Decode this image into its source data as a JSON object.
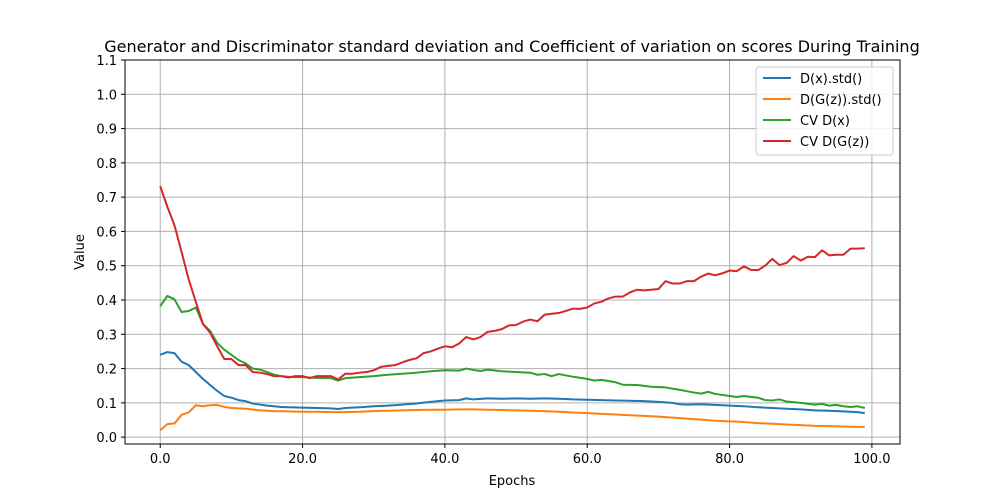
{
  "chart_data": {
    "type": "line",
    "title": "Generator and Discriminator standard deviation and Coefficient of variation on scores During Training",
    "xlabel": "Epochs",
    "ylabel": "Value",
    "xlim": [
      -4.95,
      103.95
    ],
    "ylim": [
      -0.02,
      1.1
    ],
    "xticks": [
      0,
      20,
      40,
      60,
      80,
      100
    ],
    "xtick_labels": [
      "0.0",
      "20.0",
      "40.0",
      "60.0",
      "80.0",
      "100.0"
    ],
    "yticks": [
      0.0,
      0.1,
      0.2,
      0.3,
      0.4,
      0.5,
      0.6,
      0.7,
      0.8,
      0.9,
      1.0,
      1.1
    ],
    "ytick_labels": [
      "0.0",
      "0.1",
      "0.2",
      "0.3",
      "0.4",
      "0.5",
      "0.6",
      "0.7",
      "0.8",
      "0.9",
      "1.0",
      "1.1"
    ],
    "grid": true,
    "legend_position": "top-right",
    "series": [
      {
        "name": "D(x).std()",
        "color": "#1f77b4",
        "points": [
          [
            0,
            0.24
          ],
          [
            1,
            0.248
          ],
          [
            2,
            0.245
          ],
          [
            3,
            0.22
          ],
          [
            4,
            0.21
          ],
          [
            5,
            0.19
          ],
          [
            6,
            0.17
          ],
          [
            7,
            0.152
          ],
          [
            8,
            0.135
          ],
          [
            9,
            0.12
          ],
          [
            10,
            0.115
          ],
          [
            11,
            0.108
          ],
          [
            12,
            0.105
          ],
          [
            13,
            0.098
          ],
          [
            14,
            0.095
          ],
          [
            15,
            0.092
          ],
          [
            16,
            0.09
          ],
          [
            17,
            0.088
          ],
          [
            18,
            0.087
          ],
          [
            20,
            0.086
          ],
          [
            22,
            0.085
          ],
          [
            24,
            0.084
          ],
          [
            25,
            0.082
          ],
          [
            26,
            0.085
          ],
          [
            28,
            0.087
          ],
          [
            30,
            0.09
          ],
          [
            32,
            0.092
          ],
          [
            34,
            0.095
          ],
          [
            36,
            0.098
          ],
          [
            38,
            0.103
          ],
          [
            40,
            0.107
          ],
          [
            42,
            0.108
          ],
          [
            43,
            0.113
          ],
          [
            44,
            0.11
          ],
          [
            46,
            0.113
          ],
          [
            48,
            0.112
          ],
          [
            50,
            0.113
          ],
          [
            52,
            0.112
          ],
          [
            54,
            0.113
          ],
          [
            56,
            0.112
          ],
          [
            58,
            0.11
          ],
          [
            60,
            0.109
          ],
          [
            62,
            0.108
          ],
          [
            64,
            0.107
          ],
          [
            66,
            0.106
          ],
          [
            68,
            0.105
          ],
          [
            70,
            0.103
          ],
          [
            72,
            0.1
          ],
          [
            73,
            0.096
          ],
          [
            74,
            0.095
          ],
          [
            76,
            0.096
          ],
          [
            78,
            0.094
          ],
          [
            80,
            0.092
          ],
          [
            82,
            0.09
          ],
          [
            84,
            0.087
          ],
          [
            86,
            0.085
          ],
          [
            88,
            0.083
          ],
          [
            90,
            0.081
          ],
          [
            92,
            0.078
          ],
          [
            94,
            0.077
          ],
          [
            96,
            0.075
          ],
          [
            98,
            0.073
          ],
          [
            99,
            0.07
          ]
        ]
      },
      {
        "name": "D(G(z)).std()",
        "color": "#ff7f0e",
        "points": [
          [
            0,
            0.02
          ],
          [
            1,
            0.038
          ],
          [
            2,
            0.04
          ],
          [
            3,
            0.065
          ],
          [
            4,
            0.072
          ],
          [
            5,
            0.093
          ],
          [
            6,
            0.09
          ],
          [
            7,
            0.093
          ],
          [
            8,
            0.094
          ],
          [
            9,
            0.088
          ],
          [
            10,
            0.085
          ],
          [
            12,
            0.083
          ],
          [
            14,
            0.078
          ],
          [
            16,
            0.076
          ],
          [
            18,
            0.075
          ],
          [
            20,
            0.074
          ],
          [
            22,
            0.074
          ],
          [
            24,
            0.073
          ],
          [
            26,
            0.073
          ],
          [
            28,
            0.074
          ],
          [
            30,
            0.076
          ],
          [
            32,
            0.077
          ],
          [
            34,
            0.078
          ],
          [
            36,
            0.079
          ],
          [
            38,
            0.08
          ],
          [
            40,
            0.08
          ],
          [
            42,
            0.081
          ],
          [
            44,
            0.081
          ],
          [
            46,
            0.08
          ],
          [
            48,
            0.079
          ],
          [
            50,
            0.078
          ],
          [
            52,
            0.077
          ],
          [
            54,
            0.076
          ],
          [
            56,
            0.074
          ],
          [
            58,
            0.072
          ],
          [
            60,
            0.07
          ],
          [
            62,
            0.068
          ],
          [
            64,
            0.066
          ],
          [
            66,
            0.064
          ],
          [
            68,
            0.062
          ],
          [
            70,
            0.06
          ],
          [
            72,
            0.057
          ],
          [
            74,
            0.054
          ],
          [
            76,
            0.051
          ],
          [
            78,
            0.048
          ],
          [
            80,
            0.046
          ],
          [
            82,
            0.044
          ],
          [
            84,
            0.041
          ],
          [
            86,
            0.039
          ],
          [
            88,
            0.037
          ],
          [
            90,
            0.035
          ],
          [
            92,
            0.033
          ],
          [
            94,
            0.032
          ],
          [
            96,
            0.031
          ],
          [
            98,
            0.03
          ],
          [
            99,
            0.03
          ]
        ]
      },
      {
        "name": "CV D(x)",
        "color": "#2ca02c",
        "points": [
          [
            0,
            0.382
          ],
          [
            1,
            0.412
          ],
          [
            2,
            0.402
          ],
          [
            3,
            0.365
          ],
          [
            4,
            0.368
          ],
          [
            5,
            0.378
          ],
          [
            6,
            0.33
          ],
          [
            7,
            0.31
          ],
          [
            8,
            0.275
          ],
          [
            9,
            0.255
          ],
          [
            10,
            0.24
          ],
          [
            11,
            0.225
          ],
          [
            12,
            0.215
          ],
          [
            13,
            0.2
          ],
          [
            14,
            0.197
          ],
          [
            15,
            0.19
          ],
          [
            16,
            0.182
          ],
          [
            17,
            0.178
          ],
          [
            18,
            0.176
          ],
          [
            19,
            0.175
          ],
          [
            20,
            0.175
          ],
          [
            22,
            0.173
          ],
          [
            24,
            0.172
          ],
          [
            25,
            0.165
          ],
          [
            26,
            0.172
          ],
          [
            28,
            0.175
          ],
          [
            30,
            0.178
          ],
          [
            32,
            0.182
          ],
          [
            34,
            0.185
          ],
          [
            36,
            0.188
          ],
          [
            38,
            0.192
          ],
          [
            40,
            0.195
          ],
          [
            42,
            0.194
          ],
          [
            43,
            0.2
          ],
          [
            44,
            0.196
          ],
          [
            45,
            0.193
          ],
          [
            46,
            0.197
          ],
          [
            48,
            0.192
          ],
          [
            50,
            0.19
          ],
          [
            52,
            0.188
          ],
          [
            53,
            0.182
          ],
          [
            54,
            0.184
          ],
          [
            55,
            0.178
          ],
          [
            56,
            0.184
          ],
          [
            58,
            0.176
          ],
          [
            60,
            0.17
          ],
          [
            61,
            0.165
          ],
          [
            62,
            0.167
          ],
          [
            64,
            0.16
          ],
          [
            65,
            0.153
          ],
          [
            67,
            0.152
          ],
          [
            69,
            0.147
          ],
          [
            71,
            0.145
          ],
          [
            73,
            0.138
          ],
          [
            75,
            0.13
          ],
          [
            76,
            0.127
          ],
          [
            77,
            0.132
          ],
          [
            78,
            0.126
          ],
          [
            80,
            0.12
          ],
          [
            81,
            0.117
          ],
          [
            82,
            0.12
          ],
          [
            84,
            0.115
          ],
          [
            85,
            0.108
          ],
          [
            86,
            0.107
          ],
          [
            87,
            0.11
          ],
          [
            88,
            0.104
          ],
          [
            90,
            0.1
          ],
          [
            92,
            0.095
          ],
          [
            93,
            0.097
          ],
          [
            94,
            0.092
          ],
          [
            95,
            0.094
          ],
          [
            96,
            0.09
          ],
          [
            97,
            0.088
          ],
          [
            98,
            0.09
          ],
          [
            99,
            0.085
          ]
        ]
      },
      {
        "name": "CV D(G(z))",
        "color": "#d62728",
        "points": [
          [
            0,
            0.732
          ],
          [
            1,
            0.672
          ],
          [
            2,
            0.618
          ],
          [
            3,
            0.54
          ],
          [
            4,
            0.46
          ],
          [
            5,
            0.395
          ],
          [
            6,
            0.33
          ],
          [
            7,
            0.305
          ],
          [
            8,
            0.265
          ],
          [
            9,
            0.228
          ],
          [
            10,
            0.228
          ],
          [
            11,
            0.21
          ],
          [
            12,
            0.21
          ],
          [
            13,
            0.19
          ],
          [
            14,
            0.188
          ],
          [
            15,
            0.184
          ],
          [
            16,
            0.178
          ],
          [
            17,
            0.178
          ],
          [
            18,
            0.174
          ],
          [
            19,
            0.178
          ],
          [
            20,
            0.178
          ],
          [
            21,
            0.172
          ],
          [
            22,
            0.178
          ],
          [
            23,
            0.178
          ],
          [
            24,
            0.178
          ],
          [
            25,
            0.168
          ],
          [
            26,
            0.185
          ],
          [
            27,
            0.185
          ],
          [
            28,
            0.188
          ],
          [
            29,
            0.19
          ],
          [
            30,
            0.195
          ],
          [
            31,
            0.205
          ],
          [
            32,
            0.208
          ],
          [
            33,
            0.21
          ],
          [
            34,
            0.218
          ],
          [
            35,
            0.225
          ],
          [
            36,
            0.23
          ],
          [
            37,
            0.245
          ],
          [
            38,
            0.25
          ],
          [
            39,
            0.258
          ],
          [
            40,
            0.265
          ],
          [
            41,
            0.262
          ],
          [
            42,
            0.273
          ],
          [
            43,
            0.292
          ],
          [
            44,
            0.285
          ],
          [
            45,
            0.292
          ],
          [
            46,
            0.307
          ],
          [
            47,
            0.31
          ],
          [
            48,
            0.315
          ],
          [
            49,
            0.326
          ],
          [
            50,
            0.327
          ],
          [
            51,
            0.337
          ],
          [
            52,
            0.343
          ],
          [
            53,
            0.338
          ],
          [
            54,
            0.357
          ],
          [
            55,
            0.36
          ],
          [
            56,
            0.362
          ],
          [
            57,
            0.368
          ],
          [
            58,
            0.375
          ],
          [
            59,
            0.374
          ],
          [
            60,
            0.378
          ],
          [
            61,
            0.39
          ],
          [
            62,
            0.395
          ],
          [
            63,
            0.405
          ],
          [
            64,
            0.41
          ],
          [
            65,
            0.41
          ],
          [
            66,
            0.422
          ],
          [
            67,
            0.43
          ],
          [
            68,
            0.428
          ],
          [
            69,
            0.43
          ],
          [
            70,
            0.432
          ],
          [
            71,
            0.455
          ],
          [
            72,
            0.448
          ],
          [
            73,
            0.448
          ],
          [
            74,
            0.455
          ],
          [
            75,
            0.455
          ],
          [
            76,
            0.468
          ],
          [
            77,
            0.477
          ],
          [
            78,
            0.472
          ],
          [
            79,
            0.478
          ],
          [
            80,
            0.486
          ],
          [
            81,
            0.484
          ],
          [
            82,
            0.498
          ],
          [
            83,
            0.488
          ],
          [
            84,
            0.487
          ],
          [
            85,
            0.5
          ],
          [
            86,
            0.52
          ],
          [
            87,
            0.502
          ],
          [
            88,
            0.508
          ],
          [
            89,
            0.528
          ],
          [
            90,
            0.515
          ],
          [
            91,
            0.526
          ],
          [
            92,
            0.525
          ],
          [
            93,
            0.545
          ],
          [
            94,
            0.53
          ],
          [
            95,
            0.532
          ],
          [
            96,
            0.532
          ],
          [
            97,
            0.55
          ],
          [
            98,
            0.55
          ],
          [
            99,
            0.551
          ]
        ]
      }
    ]
  }
}
